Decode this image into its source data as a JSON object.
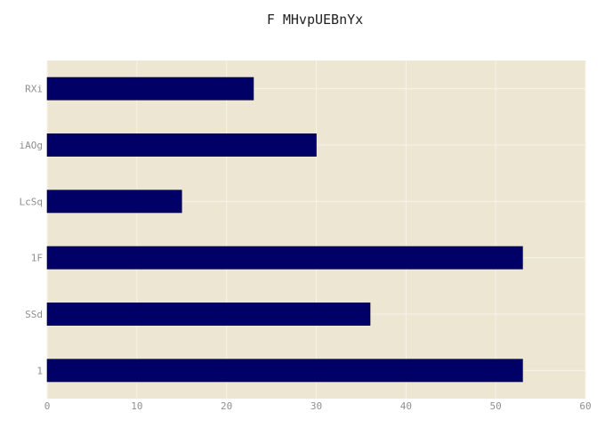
{
  "chart_data": {
    "type": "bar",
    "orientation": "horizontal",
    "title": "F MHvpUEBnYx",
    "xlabel": "",
    "ylabel": "",
    "categories": [
      "RXi",
      "iAOg",
      "LcSq",
      "1F",
      "SSd",
      "1"
    ],
    "values": [
      23,
      30,
      15,
      53,
      36,
      53
    ],
    "xlim": [
      0,
      60
    ],
    "xticks": [
      0,
      10,
      20,
      30,
      40,
      50,
      60
    ],
    "grid": true,
    "legend": "none"
  },
  "colors": {
    "plot_background": "#ede6d3",
    "bar_fill": "#000066",
    "grid": "#f7f3ea",
    "tick_text": "#8f8f8f",
    "title_text": "#222222"
  }
}
